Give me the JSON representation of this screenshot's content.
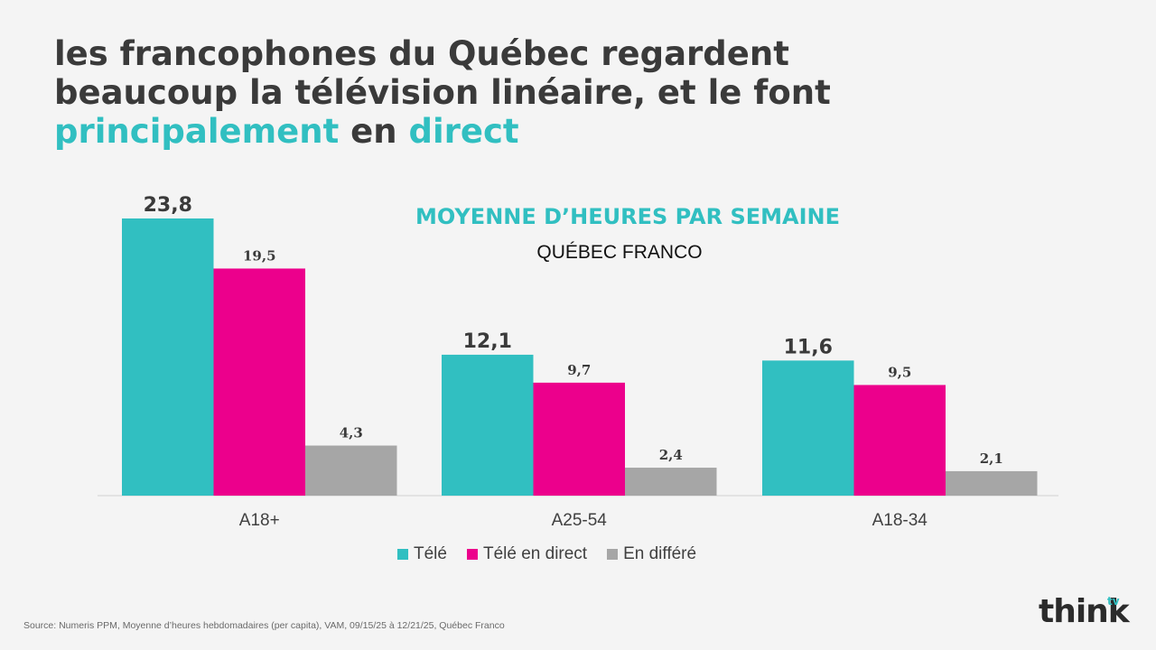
{
  "title": {
    "line1": "les francophones du Québec regardent",
    "line2": "beaucoup la télévision linéaire, et le font",
    "line3_accent1": "principalement",
    "line3_mid": " en ",
    "line3_accent2": "direct"
  },
  "chart_heading": "MOYENNE D’HEURES PAR SEMAINE",
  "chart_subheading": "QUÉBEC FRANCO",
  "source": "Source: Numeris PPM, Moyenne d’heures hebdomadaires (per capita), VAM, 09/15/25 à 12/21/25, Québec Franco",
  "logo": {
    "text": "think",
    "superscript": "tv"
  },
  "colors": {
    "tele": "#31bfc1",
    "direct": "#ec008c",
    "differe": "#a6a6a6",
    "accent": "#31bfc1"
  },
  "chart_data": {
    "type": "bar",
    "categories": [
      "A18+",
      "A25-54",
      "A18-34"
    ],
    "series": [
      {
        "name": "Télé",
        "values": [
          23.8,
          12.1,
          11.6
        ],
        "labels": [
          "23,8",
          "12,1",
          "11,6"
        ]
      },
      {
        "name": "Télé en direct",
        "values": [
          19.5,
          9.7,
          9.5
        ],
        "labels": [
          "19,5",
          "9,7",
          "9,5"
        ]
      },
      {
        "name": "En différé",
        "values": [
          4.3,
          2.4,
          2.1
        ],
        "labels": [
          "4,3",
          "2,4",
          "2,1"
        ]
      }
    ],
    "title": "MOYENNE D’HEURES PAR SEMAINE",
    "ylim": [
      0,
      23.8
    ],
    "legend": "bottom"
  }
}
